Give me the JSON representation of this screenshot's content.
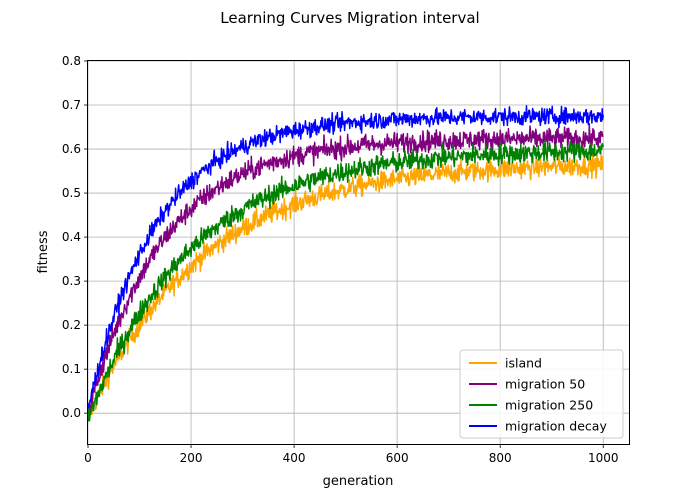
{
  "chart_data": {
    "type": "line",
    "title": "Learning Curves Migration interval",
    "xlabel": "generation",
    "ylabel": "fitness",
    "xlim": [
      0,
      1050
    ],
    "ylim": [
      -0.07,
      0.8
    ],
    "xticks": [
      0,
      200,
      400,
      600,
      800,
      1000
    ],
    "yticks": [
      0.0,
      0.1,
      0.2,
      0.3,
      0.4,
      0.5,
      0.6,
      0.7,
      0.8
    ],
    "xtick_labels": [
      "0",
      "200",
      "400",
      "600",
      "800",
      "1000"
    ],
    "ytick_labels": [
      "0.0",
      "0.1",
      "0.2",
      "0.3",
      "0.4",
      "0.5",
      "0.6",
      "0.7",
      "0.8"
    ],
    "grid": true,
    "legend_position": "lower-right",
    "generations": 1000,
    "series": [
      {
        "name": "island",
        "color": "#ffa500",
        "start": -0.01,
        "plateau": 0.57,
        "rate": 0.0045,
        "noise": 0.012,
        "samples": [
          [
            0,
            -0.01
          ],
          [
            100,
            0.21
          ],
          [
            200,
            0.34
          ],
          [
            300,
            0.45
          ],
          [
            400,
            0.5
          ],
          [
            500,
            0.53
          ],
          [
            600,
            0.555
          ],
          [
            700,
            0.565
          ],
          [
            800,
            0.57
          ],
          [
            900,
            0.575
          ],
          [
            1000,
            0.575
          ]
        ]
      },
      {
        "name": "migration 50",
        "color": "#800080",
        "start": 0.0,
        "plateau": 0.625,
        "rate": 0.0068,
        "noise": 0.012,
        "samples": [
          [
            0,
            0.0
          ],
          [
            100,
            0.3
          ],
          [
            200,
            0.46
          ],
          [
            300,
            0.55
          ],
          [
            400,
            0.6
          ],
          [
            500,
            0.61
          ],
          [
            600,
            0.62
          ],
          [
            700,
            0.625
          ],
          [
            800,
            0.625
          ],
          [
            900,
            0.625
          ],
          [
            1000,
            0.625
          ]
        ]
      },
      {
        "name": "migration 250",
        "color": "#008000",
        "start": -0.015,
        "plateau": 0.6,
        "rate": 0.005,
        "noise": 0.012,
        "samples": [
          [
            0,
            -0.015
          ],
          [
            100,
            0.24
          ],
          [
            200,
            0.39
          ],
          [
            300,
            0.48
          ],
          [
            400,
            0.54
          ],
          [
            500,
            0.57
          ],
          [
            600,
            0.585
          ],
          [
            700,
            0.595
          ],
          [
            800,
            0.6
          ],
          [
            900,
            0.6
          ],
          [
            1000,
            0.605
          ]
        ]
      },
      {
        "name": "migration decay",
        "color": "#0000ff",
        "start": 0.01,
        "plateau": 0.675,
        "rate": 0.0075,
        "noise": 0.01,
        "samples": [
          [
            0,
            0.01
          ],
          [
            100,
            0.34
          ],
          [
            200,
            0.51
          ],
          [
            300,
            0.61
          ],
          [
            400,
            0.66
          ],
          [
            500,
            0.67
          ],
          [
            600,
            0.675
          ],
          [
            700,
            0.68
          ],
          [
            800,
            0.675
          ],
          [
            900,
            0.675
          ],
          [
            1000,
            0.67
          ]
        ]
      }
    ]
  }
}
